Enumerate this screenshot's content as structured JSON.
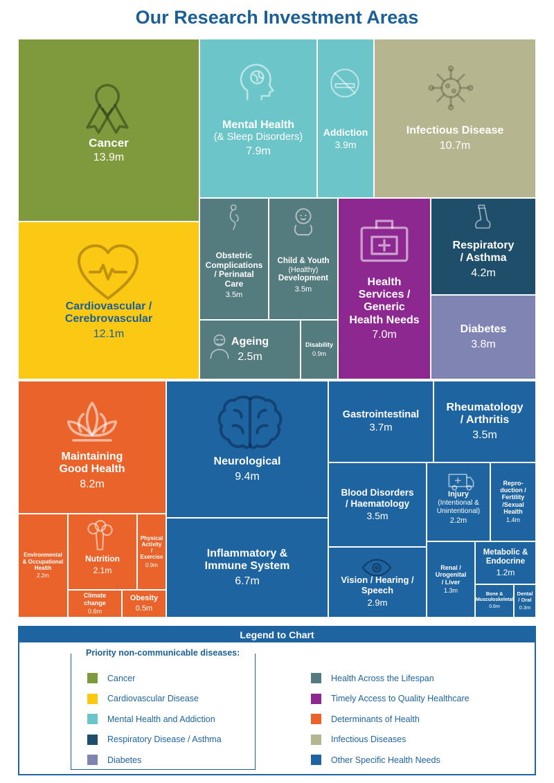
{
  "title": "Our Research Investment Areas",
  "chart_data": {
    "type": "treemap",
    "title": "Our Research Investment Areas",
    "units": "m",
    "cells": [
      {
        "id": "cancer",
        "label": "Cancer",
        "value_text": "13.9m",
        "value": 13.9,
        "category": "Cancer"
      },
      {
        "id": "mental",
        "label": "Mental Health",
        "sub": "(& Sleep Disorders)",
        "value_text": "7.9m",
        "value": 7.9,
        "category": "Mental Health and Addiction"
      },
      {
        "id": "addiction",
        "label": "Addiction",
        "value_text": "3.9m",
        "value": 3.9,
        "category": "Mental Health and Addiction"
      },
      {
        "id": "infectious",
        "label": "Infectious Disease",
        "value_text": "10.7m",
        "value": 10.7,
        "category": "Infectious Diseases"
      },
      {
        "id": "cardio",
        "label": "Cardiovascular / Cerebrovascular",
        "value_text": "12.1m",
        "value": 12.1,
        "category": "Cardiovascular Disease"
      },
      {
        "id": "obstetric",
        "label": "Obstetric Complications / Perinatal Care",
        "value_text": "3.5m",
        "value": 3.5,
        "category": "Health Across the Lifespan"
      },
      {
        "id": "child",
        "label": "Child & Youth",
        "sub": "(Healthy)",
        "label2": "Development",
        "value_text": "3.5m",
        "value": 3.5,
        "category": "Health Across the Lifespan"
      },
      {
        "id": "ageing",
        "label": "Ageing",
        "value_text": "2.5m",
        "value": 2.5,
        "category": "Health Across the Lifespan"
      },
      {
        "id": "disability",
        "label": "Disability",
        "value_text": "0.9m",
        "value": 0.9,
        "category": "Health Across the Lifespan"
      },
      {
        "id": "health_services",
        "label": "Health Services / Generic Health Needs",
        "value_text": "7.0m",
        "value": 7.0,
        "category": "Timely Access to Quality Healthcare"
      },
      {
        "id": "respiratory",
        "label": "Respiratory / Asthma",
        "value_text": "4.2m",
        "value": 4.2,
        "category": "Respiratory Disease / Asthma"
      },
      {
        "id": "diabetes",
        "label": "Diabetes",
        "value_text": "3.8m",
        "value": 3.8,
        "category": "Diabetes"
      },
      {
        "id": "good_health",
        "label": "Maintaining Good Health",
        "value_text": "8.2m",
        "value": 8.2,
        "category": "Determinants of Health"
      },
      {
        "id": "environmental",
        "label": "Environmental & Occupational Health",
        "value_text": "2.2m",
        "value": 2.2,
        "category": "Determinants of Health"
      },
      {
        "id": "nutrition",
        "label": "Nutrition",
        "value_text": "2.1m",
        "value": 2.1,
        "category": "Determinants of Health"
      },
      {
        "id": "physical",
        "label": "Physical Activity / Exercise",
        "value_text": "0.9m",
        "value": 0.9,
        "category": "Determinants of Health"
      },
      {
        "id": "climate",
        "label": "Climate change",
        "value_text": "0.6m",
        "value": 0.6,
        "category": "Determinants of Health"
      },
      {
        "id": "obesity",
        "label": "Obesity",
        "value_text": "0.5m",
        "value": 0.5,
        "category": "Determinants of Health"
      },
      {
        "id": "neurological",
        "label": "Neurological",
        "value_text": "9.4m",
        "value": 9.4,
        "category": "Other Specific Health Needs"
      },
      {
        "id": "inflammatory",
        "label": "Inflammatory & Immune System",
        "value_text": "6.7m",
        "value": 6.7,
        "category": "Other Specific Health Needs"
      },
      {
        "id": "gastro",
        "label": "Gastrointestinal",
        "value_text": "3.7m",
        "value": 3.7,
        "category": "Other Specific Health Needs"
      },
      {
        "id": "rheuma",
        "label": "Rheumatology / Arthritis",
        "value_text": "3.5m",
        "value": 3.5,
        "category": "Other Specific Health Needs"
      },
      {
        "id": "blood",
        "label": "Blood Disorders / Haematology",
        "value_text": "3.5m",
        "value": 3.5,
        "category": "Other Specific Health Needs"
      },
      {
        "id": "injury",
        "label": "Injury",
        "sub": "(Intentional & Unintentional)",
        "value_text": "2.2m",
        "value": 2.2,
        "category": "Other Specific Health Needs"
      },
      {
        "id": "reproduction",
        "label": "Repro- duction / Fertility /Sexual Health",
        "value_text": "1.4m",
        "value": 1.4,
        "category": "Other Specific Health Needs"
      },
      {
        "id": "vision",
        "label": "Vision / Hearing / Speech",
        "value_text": "2.9m",
        "value": 2.9,
        "category": "Other Specific Health Needs"
      },
      {
        "id": "renal",
        "label": "Renal / Urogenital / Liver",
        "value_text": "1.3m",
        "value": 1.3,
        "category": "Other Specific Health Needs"
      },
      {
        "id": "metabolic",
        "label": "Metabolic & Endocrine",
        "value_text": "1.2m",
        "value": 1.2,
        "category": "Other Specific Health Needs"
      },
      {
        "id": "bone",
        "label": "Bone & Musculoskeletal",
        "value_text": "0.6m",
        "value": 0.6,
        "category": "Other Specific Health Needs"
      },
      {
        "id": "dental",
        "label": "Dental / Oral",
        "value_text": "0.3m",
        "value": 0.3,
        "category": "Other Specific Health Needs"
      }
    ],
    "colors": {
      "Cancer": "#7e9a3c",
      "Cardiovascular Disease": "#fbc814",
      "Mental Health and Addiction": "#6cc5c8",
      "Respiratory Disease / Asthma": "#1f4e6b",
      "Diabetes": "#7f84b3",
      "Health Across the Lifespan": "#547b7e",
      "Timely Access to Quality Healthcare": "#8e2891",
      "Determinants of Health": "#e9632a",
      "Infectious Diseases": "#b5b68f",
      "Other Specific Health Needs": "#1e64a0"
    }
  },
  "legend": {
    "title": "Legend to Chart",
    "priority_title": "Priority non-communicable diseases:",
    "left_items": [
      {
        "label": "Cancer",
        "color": "#7e9a3c"
      },
      {
        "label": "Cardiovascular Disease",
        "color": "#fbc814"
      },
      {
        "label": "Mental Health and Addiction",
        "color": "#6cc5c8"
      },
      {
        "label": "Respiratory Disease /  Asthma",
        "color": "#1f4e6b"
      },
      {
        "label": "Diabetes",
        "color": "#7f84b3"
      }
    ],
    "right_items": [
      {
        "label": "Health Across the Lifespan",
        "color": "#547b7e"
      },
      {
        "label": "Timely Access to Quality Healthcare",
        "color": "#8e2891"
      },
      {
        "label": "Determinants of Health",
        "color": "#e9632a"
      },
      {
        "label": "Infectious Diseases",
        "color": "#b5b68f"
      },
      {
        "label": "Other Specific Health Needs",
        "color": "#1e64a0"
      }
    ]
  }
}
